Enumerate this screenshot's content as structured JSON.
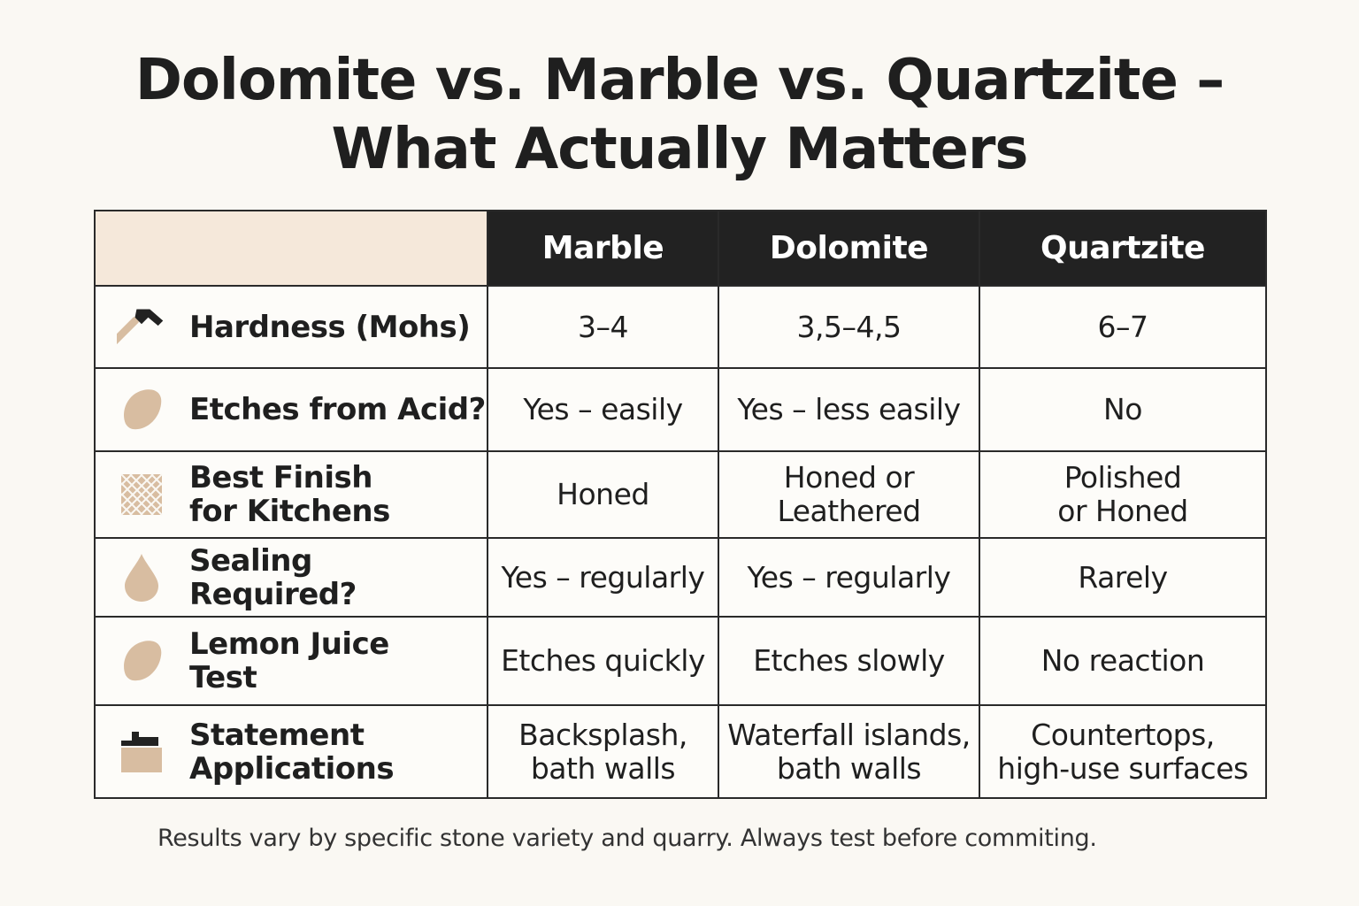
{
  "title": {
    "line1": "Dolomite vs. Marble vs. Quartzite –",
    "line2": "What Actually Matters"
  },
  "table": {
    "columns": [
      "Marble",
      "Dolomite",
      "Quartzite"
    ],
    "rows": [
      {
        "label": "Hardness (Mohs)",
        "icon": "hammer-icon",
        "values": [
          "3–4",
          "3,5–4,5",
          "6–7"
        ]
      },
      {
        "label": "Etches from Acid?",
        "icon": "lemon-icon",
        "values": [
          "Yes – easily",
          "Yes – less easily",
          "No"
        ]
      },
      {
        "label": "Best Finish\nfor Kitchens",
        "icon": "crosshatch-tile-icon",
        "values": [
          "Honed",
          "Honed or\nLeathered",
          "Polished\nor Honed"
        ]
      },
      {
        "label": "Sealing Required?",
        "icon": "droplet-icon",
        "values": [
          "Yes – regularly",
          "Yes – regularly",
          "Rarely"
        ]
      },
      {
        "label": "Lemon Juice\nTest",
        "icon": "lemon-icon",
        "values": [
          "Etches quickly",
          "Etches slowly",
          "No reaction"
        ]
      },
      {
        "label": "Statement\nApplications",
        "icon": "countertop-icon",
        "values": [
          "Backsplash,\nbath walls",
          "Waterfall islands,\nbath walls",
          "Countertops,\nhigh-use surfaces"
        ]
      }
    ]
  },
  "colors": {
    "header_bg": "#222222",
    "corner_bg": "#f5e8da",
    "icon_tan": "#d8bda1",
    "page_bg": "#faf8f3"
  },
  "footnote": "Results vary by specific stone variety and quarry. Always test before commiting."
}
